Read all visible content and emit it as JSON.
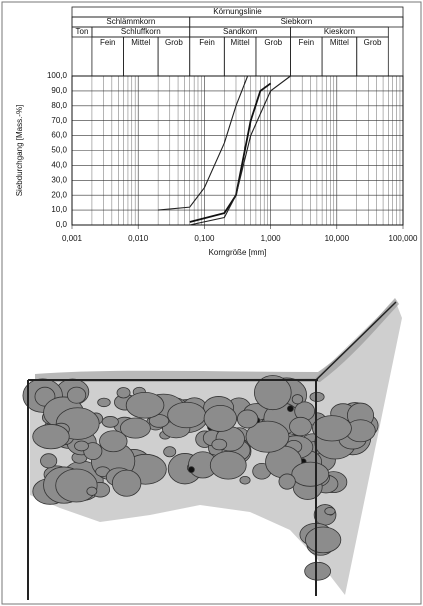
{
  "chart_data": {
    "type": "line",
    "title": "Körnungslinie",
    "xlabel": "Korngröße [mm]",
    "ylabel": "Siebdurchgang [Mass.-%]",
    "xscale": "log",
    "xlim": [
      0.001,
      100
    ],
    "xticks": [
      {
        "value": 0.001,
        "label": "0,001"
      },
      {
        "value": 0.01,
        "label": "0,010"
      },
      {
        "value": 0.1,
        "label": "0,100"
      },
      {
        "value": 1,
        "label": "1,000"
      },
      {
        "value": 10,
        "label": "10,000"
      },
      {
        "value": 100,
        "label": "100,000"
      }
    ],
    "ylim": [
      0,
      100
    ],
    "yticks": [
      {
        "value": 0,
        "label": "0,0"
      },
      {
        "value": 10,
        "label": "10,0"
      },
      {
        "value": 20,
        "label": "20,0"
      },
      {
        "value": 30,
        "label": "30,0"
      },
      {
        "value": 40,
        "label": "40,0"
      },
      {
        "value": 50,
        "label": "50,0"
      },
      {
        "value": 60,
        "label": "60,0"
      },
      {
        "value": 70,
        "label": "70,0"
      },
      {
        "value": 80,
        "label": "80,0"
      },
      {
        "value": 90,
        "label": "90,0"
      },
      {
        "value": 100,
        "label": "100,0"
      }
    ],
    "grid": true,
    "header": [
      [
        {
          "label": "Schlämmkorn",
          "from": 0.001,
          "to": 0.06
        },
        {
          "label": "Siebkorn",
          "from": 0.06,
          "to": 100
        }
      ],
      [
        {
          "label": "Ton",
          "from": 0.001,
          "to": 0.002
        },
        {
          "label": "Schluffkorn",
          "from": 0.002,
          "to": 0.06
        },
        {
          "label": "Sandkorn",
          "from": 0.06,
          "to": 2
        },
        {
          "label": "Kieskorn",
          "from": 2,
          "to": 60
        }
      ],
      [
        {
          "label": "Fein",
          "from": 0.002,
          "to": 0.006
        },
        {
          "label": "Mittel",
          "from": 0.006,
          "to": 0.02
        },
        {
          "label": "Grob",
          "from": 0.02,
          "to": 0.06
        },
        {
          "label": "Fein",
          "from": 0.06,
          "to": 0.2
        },
        {
          "label": "Mittel",
          "from": 0.2,
          "to": 0.6
        },
        {
          "label": "Grob",
          "from": 0.6,
          "to": 2
        },
        {
          "label": "Fein",
          "from": 2,
          "to": 6
        },
        {
          "label": "Mittel",
          "from": 6,
          "to": 20
        },
        {
          "label": "Grob",
          "from": 20,
          "to": 60
        }
      ]
    ],
    "series": [
      {
        "color": "#222222",
        "x": [
          0.02,
          0.06,
          0.1,
          0.2,
          0.3,
          0.45
        ],
        "values": [
          10,
          12,
          25,
          55,
          80,
          100
        ]
      },
      {
        "color": "#111111",
        "x": [
          0.06,
          0.2,
          0.3,
          0.5,
          0.7,
          1.0
        ],
        "values": [
          2,
          8,
          20,
          70,
          90,
          95
        ]
      },
      {
        "color": "#222222",
        "x": [
          0.06,
          0.2,
          0.3,
          0.5,
          1.0,
          2.0
        ],
        "values": [
          0,
          5,
          20,
          60,
          90,
          100
        ]
      }
    ]
  }
}
